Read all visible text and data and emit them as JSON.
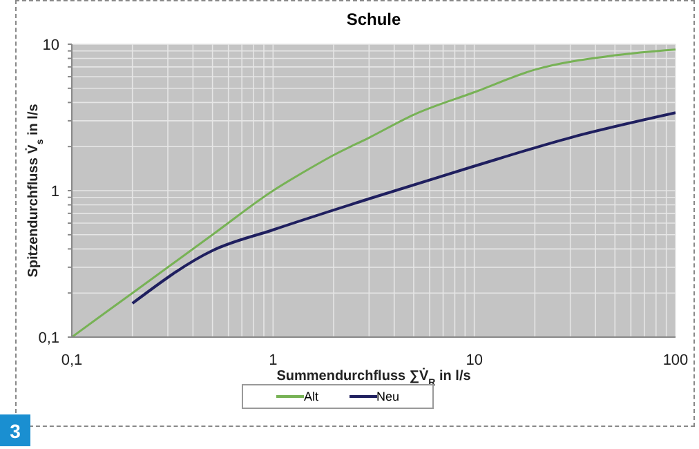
{
  "chart_data": {
    "type": "line",
    "title": "Schule",
    "xlabel": "Summendurchfluss ∑V̇$_{R}$ in l/s",
    "ylabel": "Spitzendurchfluss V̇$_{s}$ in l/s",
    "log": "xy",
    "xlim": [
      0.1,
      100
    ],
    "ylim": [
      0.1,
      10
    ],
    "xticks": [
      {
        "value": 0.1,
        "label": "0,1"
      },
      {
        "value": 0.2,
        "label": null
      },
      {
        "value": 0.3,
        "label": null
      },
      {
        "value": 0.4,
        "label": null
      },
      {
        "value": 0.5,
        "label": null
      },
      {
        "value": 0.6,
        "label": null
      },
      {
        "value": 0.7,
        "label": null
      },
      {
        "value": 0.8,
        "label": null
      },
      {
        "value": 0.9,
        "label": null
      },
      1,
      {
        "value": 2,
        "label": null
      },
      {
        "value": 3,
        "label": null
      },
      {
        "value": 4,
        "label": null
      },
      {
        "value": 5,
        "label": null
      },
      {
        "value": 6,
        "label": null
      },
      {
        "value": 7,
        "label": null
      },
      {
        "value": 8,
        "label": null
      },
      {
        "value": 9,
        "label": null
      },
      10,
      {
        "value": 20,
        "label": null
      },
      {
        "value": 30,
        "label": null
      },
      {
        "value": 40,
        "label": null
      },
      {
        "value": 50,
        "label": null
      },
      {
        "value": 60,
        "label": null
      },
      {
        "value": 70,
        "label": null
      },
      {
        "value": 80,
        "label": null
      },
      {
        "value": 90,
        "label": null
      },
      100
    ],
    "yticks": [
      {
        "value": 0.1,
        "label": "0,1"
      },
      {
        "value": 0.2,
        "label": null
      },
      {
        "value": 0.3,
        "label": null
      },
      {
        "value": 0.4,
        "label": null
      },
      {
        "value": 0.5,
        "label": null
      },
      {
        "value": 0.6,
        "label": null
      },
      {
        "value": 0.7,
        "label": null
      },
      {
        "value": 0.8,
        "label": null
      },
      {
        "value": 0.9,
        "label": null
      },
      1,
      {
        "value": 2,
        "label": null
      },
      {
        "value": 3,
        "label": null
      },
      {
        "value": 4,
        "label": null
      },
      {
        "value": 5,
        "label": null
      },
      {
        "value": 6,
        "label": null
      },
      {
        "value": 7,
        "label": null
      },
      {
        "value": 8,
        "label": null
      },
      {
        "value": 9,
        "label": null
      },
      10
    ],
    "grid": true,
    "legend": "bottom",
    "marker": "none",
    "series": [
      {
        "name": "Alt",
        "color": "#77b255",
        "x": [
          0.1,
          0.2,
          0.5,
          1,
          1.5,
          2,
          3,
          5,
          10,
          20,
          50,
          100
        ],
        "values": [
          0.1,
          0.2,
          0.5,
          1,
          1.4,
          1.75,
          2.3,
          3.3,
          4.7,
          6.7,
          8.4,
          9.2
        ]
      },
      {
        "name": "Neu",
        "color": "#1f1f5f",
        "x": [
          0.2,
          0.5,
          1,
          3,
          10,
          30,
          100
        ],
        "values": [
          0.17,
          0.39,
          0.54,
          0.88,
          1.47,
          2.3,
          3.4
        ]
      }
    ],
    "annotations": [
      "3"
    ]
  }
}
